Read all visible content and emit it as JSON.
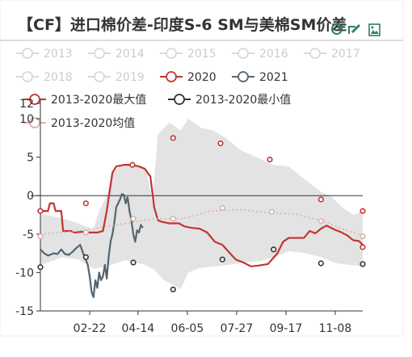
{
  "chart_data": {
    "type": "line",
    "title": "【CF】进口棉价差-印度S-6 SM与美棉SM价差",
    "xlabel": "",
    "ylabel": "",
    "ylim": [
      -15,
      12
    ],
    "y_ticks": [
      -15,
      -10,
      -5,
      0,
      5,
      10,
      12
    ],
    "x_domain": [
      0,
      340
    ],
    "x_ticks": [
      {
        "label": "02-22",
        "day": 52
      },
      {
        "label": "04-14",
        "day": 103
      },
      {
        "label": "06-05",
        "day": 155
      },
      {
        "label": "07-27",
        "day": 207
      },
      {
        "label": "09-17",
        "day": 259
      },
      {
        "label": "11-08",
        "day": 311
      }
    ],
    "grid": false,
    "legend_position": "top",
    "legend": [
      {
        "name": "2013",
        "color": "#d9d9d9",
        "symbol": "line-circle",
        "active": false
      },
      {
        "name": "2014",
        "color": "#d9d9d9",
        "symbol": "line-circle",
        "active": false
      },
      {
        "name": "2015",
        "color": "#d9d9d9",
        "symbol": "line-circle",
        "active": false
      },
      {
        "name": "2016",
        "color": "#d9d9d9",
        "symbol": "line-circle",
        "active": false
      },
      {
        "name": "2017",
        "color": "#d9d9d9",
        "symbol": "line-circle",
        "active": false
      },
      {
        "name": "2018",
        "color": "#d9d9d9",
        "symbol": "line-circle",
        "active": false
      },
      {
        "name": "2019",
        "color": "#d9d9d9",
        "symbol": "line-circle",
        "active": false
      },
      {
        "name": "2020",
        "color": "#c23531",
        "symbol": "line-circle",
        "active": true
      },
      {
        "name": "2021",
        "color": "#546570",
        "symbol": "line-circle",
        "active": true
      },
      {
        "name": "2013-2020最大值",
        "color": "#c23531",
        "symbol": "line-circle",
        "active": true
      },
      {
        "name": "2013-2020最小值",
        "color": "#333333",
        "symbol": "line-circle",
        "active": true
      },
      {
        "name": "2013-2020均值",
        "color": "#d8b2a8",
        "symbol": "line-circle",
        "active": true
      }
    ],
    "colors": {
      "s2020": "#c23531",
      "s2021": "#546570",
      "max_marker": "#c23531",
      "min_marker": "#333333",
      "mean": "#d8b2a8",
      "band": "#e3e3e3",
      "axis": "#333333",
      "toolbox": "#2e7d6b"
    },
    "series": [
      {
        "name": "2020",
        "color": "#c23531",
        "points": [
          [
            0,
            -2
          ],
          [
            8,
            -2
          ],
          [
            10,
            -1
          ],
          [
            14,
            -1
          ],
          [
            16,
            -2
          ],
          [
            22,
            -2
          ],
          [
            24,
            -4.6
          ],
          [
            32,
            -4.6
          ],
          [
            36,
            -4.8
          ],
          [
            44,
            -4.7
          ],
          [
            50,
            -4.8
          ],
          [
            60,
            -4.8
          ],
          [
            66,
            -4.6
          ],
          [
            70,
            -2
          ],
          [
            73,
            0.5
          ],
          [
            76,
            3
          ],
          [
            80,
            3.8
          ],
          [
            88,
            4
          ],
          [
            96,
            4
          ],
          [
            104,
            3.8
          ],
          [
            110,
            3.5
          ],
          [
            116,
            2.5
          ],
          [
            120,
            -1.5
          ],
          [
            124,
            -3.2
          ],
          [
            128,
            -3.4
          ],
          [
            136,
            -3.6
          ],
          [
            146,
            -3.6
          ],
          [
            152,
            -4
          ],
          [
            160,
            -4.2
          ],
          [
            168,
            -4.3
          ],
          [
            176,
            -4.8
          ],
          [
            184,
            -6
          ],
          [
            192,
            -6.4
          ],
          [
            200,
            -7.5
          ],
          [
            206,
            -8.3
          ],
          [
            214,
            -8.7
          ],
          [
            222,
            -9.2
          ],
          [
            230,
            -9.1
          ],
          [
            240,
            -8.9
          ],
          [
            250,
            -7.5
          ],
          [
            256,
            -6
          ],
          [
            262,
            -5.5
          ],
          [
            270,
            -5.5
          ],
          [
            278,
            -5.5
          ],
          [
            284,
            -4.6
          ],
          [
            290,
            -4.9
          ],
          [
            296,
            -4.3
          ],
          [
            302,
            -3.9
          ],
          [
            310,
            -4.4
          ],
          [
            318,
            -4.8
          ],
          [
            324,
            -5.2
          ],
          [
            330,
            -5.8
          ],
          [
            336,
            -5.9
          ],
          [
            340,
            -6.4
          ]
        ]
      },
      {
        "name": "2021",
        "color": "#546570",
        "points": [
          [
            0,
            -7
          ],
          [
            4,
            -7.5
          ],
          [
            8,
            -7.8
          ],
          [
            14,
            -7.5
          ],
          [
            18,
            -7.6
          ],
          [
            22,
            -7
          ],
          [
            26,
            -7.6
          ],
          [
            30,
            -7.7
          ],
          [
            34,
            -7.3
          ],
          [
            38,
            -6.8
          ],
          [
            42,
            -6.4
          ],
          [
            46,
            -7.8
          ],
          [
            50,
            -9
          ],
          [
            52,
            -10.5
          ],
          [
            54,
            -12.5
          ],
          [
            56,
            -13.2
          ],
          [
            58,
            -11
          ],
          [
            60,
            -12
          ],
          [
            62,
            -10
          ],
          [
            64,
            -11
          ],
          [
            66,
            -10.5
          ],
          [
            68,
            -9
          ],
          [
            70,
            -10.8
          ],
          [
            72,
            -8
          ],
          [
            74,
            -6
          ],
          [
            76,
            -5
          ],
          [
            78,
            -3.5
          ],
          [
            80,
            -1.5
          ],
          [
            84,
            -0.5
          ],
          [
            86,
            0.2
          ],
          [
            88,
            0.1
          ],
          [
            90,
            -1
          ],
          [
            92,
            -0.2
          ],
          [
            94,
            -2
          ],
          [
            96,
            -3.2
          ],
          [
            98,
            -5
          ],
          [
            100,
            -6
          ],
          [
            102,
            -4.5
          ],
          [
            104,
            -4.8
          ],
          [
            106,
            -3.8
          ],
          [
            108,
            -4.2
          ]
        ]
      },
      {
        "name": "2013-2020均值",
        "color": "#d8b2a8",
        "points": [
          [
            0,
            -5
          ],
          [
            20,
            -4.8
          ],
          [
            40,
            -4.6
          ],
          [
            60,
            -4.2
          ],
          [
            80,
            -3.8
          ],
          [
            100,
            -3.4
          ],
          [
            120,
            -3
          ],
          [
            150,
            -3
          ],
          [
            180,
            -2
          ],
          [
            210,
            -1.8
          ],
          [
            240,
            -2.2
          ],
          [
            270,
            -2.4
          ],
          [
            300,
            -3.4
          ],
          [
            320,
            -4.4
          ],
          [
            340,
            -5.2
          ]
        ]
      }
    ],
    "range_band": {
      "upper": [
        [
          0,
          -2.4
        ],
        [
          10,
          -2.6
        ],
        [
          24,
          -3
        ],
        [
          40,
          -3.6
        ],
        [
          56,
          -4.4
        ],
        [
          62,
          -2
        ],
        [
          70,
          0
        ],
        [
          76,
          3
        ],
        [
          84,
          3.8
        ],
        [
          100,
          4
        ],
        [
          112,
          3.5
        ],
        [
          118,
          -1
        ],
        [
          124,
          8
        ],
        [
          136,
          9.5
        ],
        [
          148,
          8.5
        ],
        [
          156,
          10
        ],
        [
          170,
          8.8
        ],
        [
          182,
          8.5
        ],
        [
          196,
          7.5
        ],
        [
          210,
          6
        ],
        [
          228,
          5
        ],
        [
          246,
          4
        ],
        [
          262,
          3.8
        ],
        [
          280,
          2
        ],
        [
          296,
          0.5
        ],
        [
          306,
          0
        ],
        [
          318,
          -1.5
        ],
        [
          330,
          -2.5
        ],
        [
          340,
          -2
        ]
      ],
      "lower": [
        [
          0,
          -9
        ],
        [
          10,
          -8.6
        ],
        [
          24,
          -8
        ],
        [
          40,
          -8.3
        ],
        [
          56,
          -9.5
        ],
        [
          70,
          -9.2
        ],
        [
          90,
          -8.4
        ],
        [
          110,
          -9
        ],
        [
          120,
          -9.6
        ],
        [
          130,
          -11
        ],
        [
          140,
          -11.6
        ],
        [
          148,
          -12.2
        ],
        [
          156,
          -10
        ],
        [
          168,
          -9.4
        ],
        [
          184,
          -9.2
        ],
        [
          200,
          -9
        ],
        [
          214,
          -8.7
        ],
        [
          232,
          -8.5
        ],
        [
          248,
          -8
        ],
        [
          262,
          -7.2
        ],
        [
          280,
          -7.5
        ],
        [
          296,
          -8
        ],
        [
          312,
          -8.8
        ],
        [
          326,
          -9
        ],
        [
          340,
          -9.2
        ]
      ]
    },
    "max_markers": [
      [
        0,
        -2
      ],
      [
        48,
        -1
      ],
      [
        97,
        4
      ],
      [
        140,
        7.5
      ],
      [
        190,
        6.8
      ],
      [
        242,
        4.7
      ],
      [
        296,
        -0.5
      ],
      [
        340,
        -2
      ]
    ],
    "min_markers": [
      [
        0,
        -9.3
      ],
      [
        48,
        -8
      ],
      [
        98,
        -8.7
      ],
      [
        140,
        -12.2
      ],
      [
        192,
        -8.3
      ],
      [
        246,
        -7
      ],
      [
        296,
        -8.8
      ],
      [
        340,
        -8.9
      ]
    ],
    "mean_markers": [
      [
        0,
        -5.3
      ],
      [
        48,
        -4.8
      ],
      [
        98,
        -3
      ],
      [
        140,
        -3
      ],
      [
        192,
        -1.6
      ],
      [
        244,
        -2.1
      ],
      [
        296,
        -3.3
      ],
      [
        340,
        -5.3
      ]
    ],
    "extra_markers_2020": [
      [
        0,
        -2
      ],
      [
        340,
        -6.7
      ]
    ]
  },
  "toolbox": {
    "restore_icon": "restore-icon",
    "dataview_icon": "data-view-icon",
    "save_icon": "save-image-icon"
  }
}
